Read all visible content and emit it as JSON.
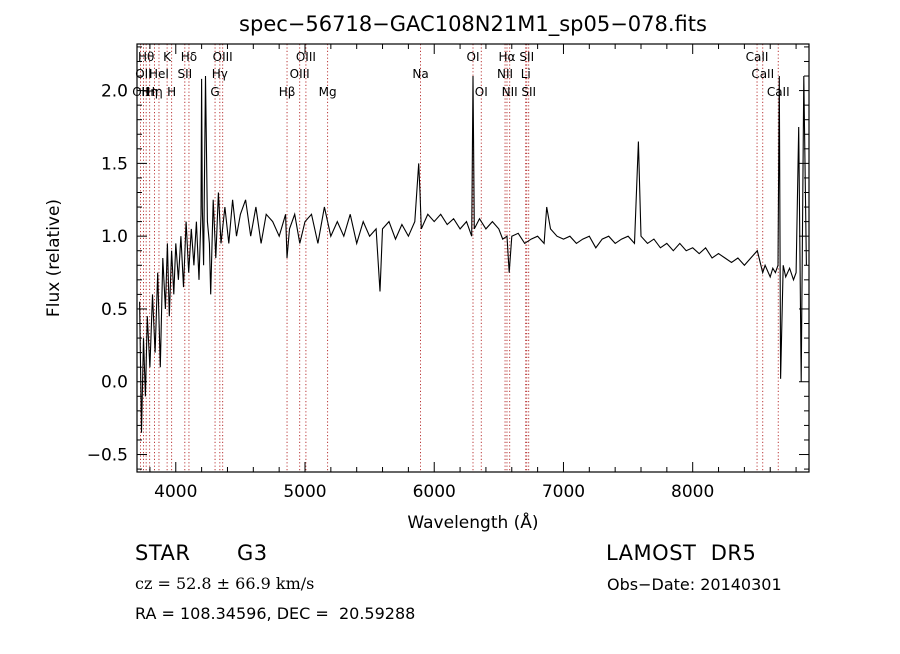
{
  "chart_data": {
    "type": "line",
    "title": "spec−56718−GAC108N21M1_sp05−078.fits",
    "xlabel": "Wavelength (Å)",
    "ylabel": "Flux (relative)",
    "xlim": [
      3700,
      8900
    ],
    "ylim": [
      -0.62,
      2.32
    ],
    "x_ticks": [
      {
        "value": 4000,
        "label": "4000"
      },
      {
        "value": 5000,
        "label": "5000"
      },
      {
        "value": 6000,
        "label": "6000"
      },
      {
        "value": 7000,
        "label": "7000"
      },
      {
        "value": 8000,
        "label": "8000"
      }
    ],
    "y_ticks": [
      {
        "value": -0.5,
        "label": "−0.5"
      },
      {
        "value": 0.0,
        "label": "0.0"
      },
      {
        "value": 0.5,
        "label": "0.5"
      },
      {
        "value": 1.0,
        "label": "1.0"
      },
      {
        "value": 1.5,
        "label": "1.5"
      },
      {
        "value": 2.0,
        "label": "2.0"
      }
    ],
    "series": [
      {
        "color": "#000000",
        "x": [
          3720,
          3735,
          3750,
          3765,
          3780,
          3800,
          3820,
          3840,
          3860,
          3880,
          3900,
          3920,
          3935,
          3950,
          3968,
          3985,
          4000,
          4020,
          4040,
          4060,
          4080,
          4100,
          4120,
          4140,
          4160,
          4180,
          4195,
          4200,
          4205,
          4215,
          4230,
          4245,
          4260,
          4270,
          4290,
          4310,
          4330,
          4350,
          4380,
          4410,
          4440,
          4470,
          4500,
          4540,
          4580,
          4620,
          4660,
          4700,
          4750,
          4800,
          4850,
          4861,
          4880,
          4920,
          4960,
          5000,
          5050,
          5100,
          5150,
          5200,
          5250,
          5300,
          5350,
          5400,
          5450,
          5500,
          5550,
          5580,
          5600,
          5650,
          5700,
          5750,
          5800,
          5850,
          5880,
          5890,
          5900,
          5950,
          6000,
          6050,
          6100,
          6150,
          6200,
          6250,
          6290,
          6300,
          6310,
          6350,
          6400,
          6450,
          6500,
          6530,
          6563,
          6580,
          6600,
          6650,
          6700,
          6750,
          6800,
          6850,
          6870,
          6900,
          6950,
          7000,
          7050,
          7100,
          7150,
          7200,
          7250,
          7300,
          7350,
          7400,
          7450,
          7500,
          7550,
          7580,
          7600,
          7650,
          7700,
          7750,
          7800,
          7850,
          7900,
          7950,
          8000,
          8050,
          8100,
          8150,
          8200,
          8250,
          8300,
          8350,
          8400,
          8450,
          8500,
          8542,
          8560,
          8600,
          8620,
          8640,
          8660,
          8670,
          8680,
          8700,
          8720,
          8750,
          8780,
          8800,
          8820,
          8840,
          8860,
          8880
        ],
        "y": [
          0.55,
          -0.35,
          0.3,
          -0.1,
          0.45,
          0.1,
          0.6,
          0.2,
          0.75,
          0.1,
          0.85,
          0.5,
          0.95,
          0.45,
          0.9,
          0.6,
          0.95,
          0.7,
          1.0,
          0.65,
          1.1,
          0.75,
          1.05,
          0.8,
          1.1,
          0.7,
          1.15,
          2.08,
          1.2,
          0.8,
          2.1,
          1.1,
          0.95,
          0.6,
          1.25,
          0.85,
          1.3,
          0.95,
          1.2,
          0.95,
          1.25,
          1.0,
          1.15,
          1.25,
          1.0,
          1.2,
          0.95,
          1.15,
          1.1,
          1.0,
          1.15,
          0.85,
          1.05,
          1.15,
          0.95,
          1.1,
          1.15,
          0.95,
          1.2,
          1.0,
          1.1,
          1.0,
          1.15,
          0.95,
          1.1,
          1.0,
          1.05,
          0.62,
          1.05,
          1.1,
          0.98,
          1.08,
          1.0,
          1.1,
          1.5,
          1.3,
          1.05,
          1.15,
          1.1,
          1.15,
          1.08,
          1.12,
          1.05,
          1.1,
          1.0,
          2.1,
          1.05,
          1.12,
          1.05,
          1.1,
          1.05,
          0.98,
          1.0,
          0.75,
          1.0,
          1.02,
          0.95,
          0.98,
          1.0,
          0.95,
          1.2,
          1.05,
          1.0,
          0.98,
          1.0,
          0.95,
          0.98,
          1.0,
          0.92,
          0.98,
          1.0,
          0.95,
          0.98,
          1.0,
          0.95,
          1.65,
          1.0,
          0.95,
          0.98,
          0.92,
          0.95,
          0.9,
          0.95,
          0.9,
          0.92,
          0.88,
          0.92,
          0.85,
          0.88,
          0.85,
          0.82,
          0.85,
          0.8,
          0.85,
          0.9,
          0.75,
          0.8,
          0.72,
          0.78,
          0.75,
          0.8,
          2.1,
          0.02,
          0.8,
          0.72,
          0.78,
          0.7,
          0.75,
          1.75,
          0.0,
          2.1,
          0.8
        ]
      }
    ],
    "lines": [
      {
        "x": 3727,
        "label": "OII",
        "row": 2
      },
      {
        "x": 3750,
        "label": "OII",
        "row": 1
      },
      {
        "x": 3771,
        "label": "Hθ",
        "row": 0
      },
      {
        "x": 3798,
        "label": "Hη",
        "row": 2
      },
      {
        "x": 3835,
        "label": "Hη",
        "row": 2
      },
      {
        "x": 3870,
        "label": "HeI",
        "row": 1
      },
      {
        "x": 3933,
        "label": "K",
        "row": 0
      },
      {
        "x": 3968,
        "label": "H",
        "row": 2
      },
      {
        "x": 4070,
        "label": "SII",
        "row": 1
      },
      {
        "x": 4102,
        "label": "Hδ",
        "row": 0
      },
      {
        "x": 4304,
        "label": "G",
        "row": 2
      },
      {
        "x": 4341,
        "label": "Hγ",
        "row": 1
      },
      {
        "x": 4363,
        "label": "OIII",
        "row": 0
      },
      {
        "x": 4861,
        "label": "Hβ",
        "row": 2
      },
      {
        "x": 4959,
        "label": "OIII",
        "row": 1
      },
      {
        "x": 5007,
        "label": "OIII",
        "row": 0
      },
      {
        "x": 5175,
        "label": "Mg",
        "row": 2
      },
      {
        "x": 5894,
        "label": "Na",
        "row": 1
      },
      {
        "x": 6300,
        "label": "OI",
        "row": 0
      },
      {
        "x": 6364,
        "label": "OI",
        "row": 2
      },
      {
        "x": 6548,
        "label": "NII",
        "row": 1
      },
      {
        "x": 6563,
        "label": "Hα",
        "row": 0
      },
      {
        "x": 6584,
        "label": "NII",
        "row": 2
      },
      {
        "x": 6708,
        "label": "Li",
        "row": 1
      },
      {
        "x": 6716,
        "label": "SII",
        "row": 0
      },
      {
        "x": 6731,
        "label": "SII",
        "row": 2
      },
      {
        "x": 8498,
        "label": "CaII",
        "row": 0
      },
      {
        "x": 8542,
        "label": "CaII",
        "row": 1
      },
      {
        "x": 8662,
        "label": "CaII",
        "row": 2
      }
    ]
  },
  "info": {
    "class_label": "STAR",
    "subclass": "G3",
    "survey": "LAMOST  DR5",
    "cz": "cz = 52.8 ± 66.9 km/s",
    "obs_date": "Obs−Date: 20140301",
    "coords": "RA = 108.34596, DEC =  20.59288"
  }
}
